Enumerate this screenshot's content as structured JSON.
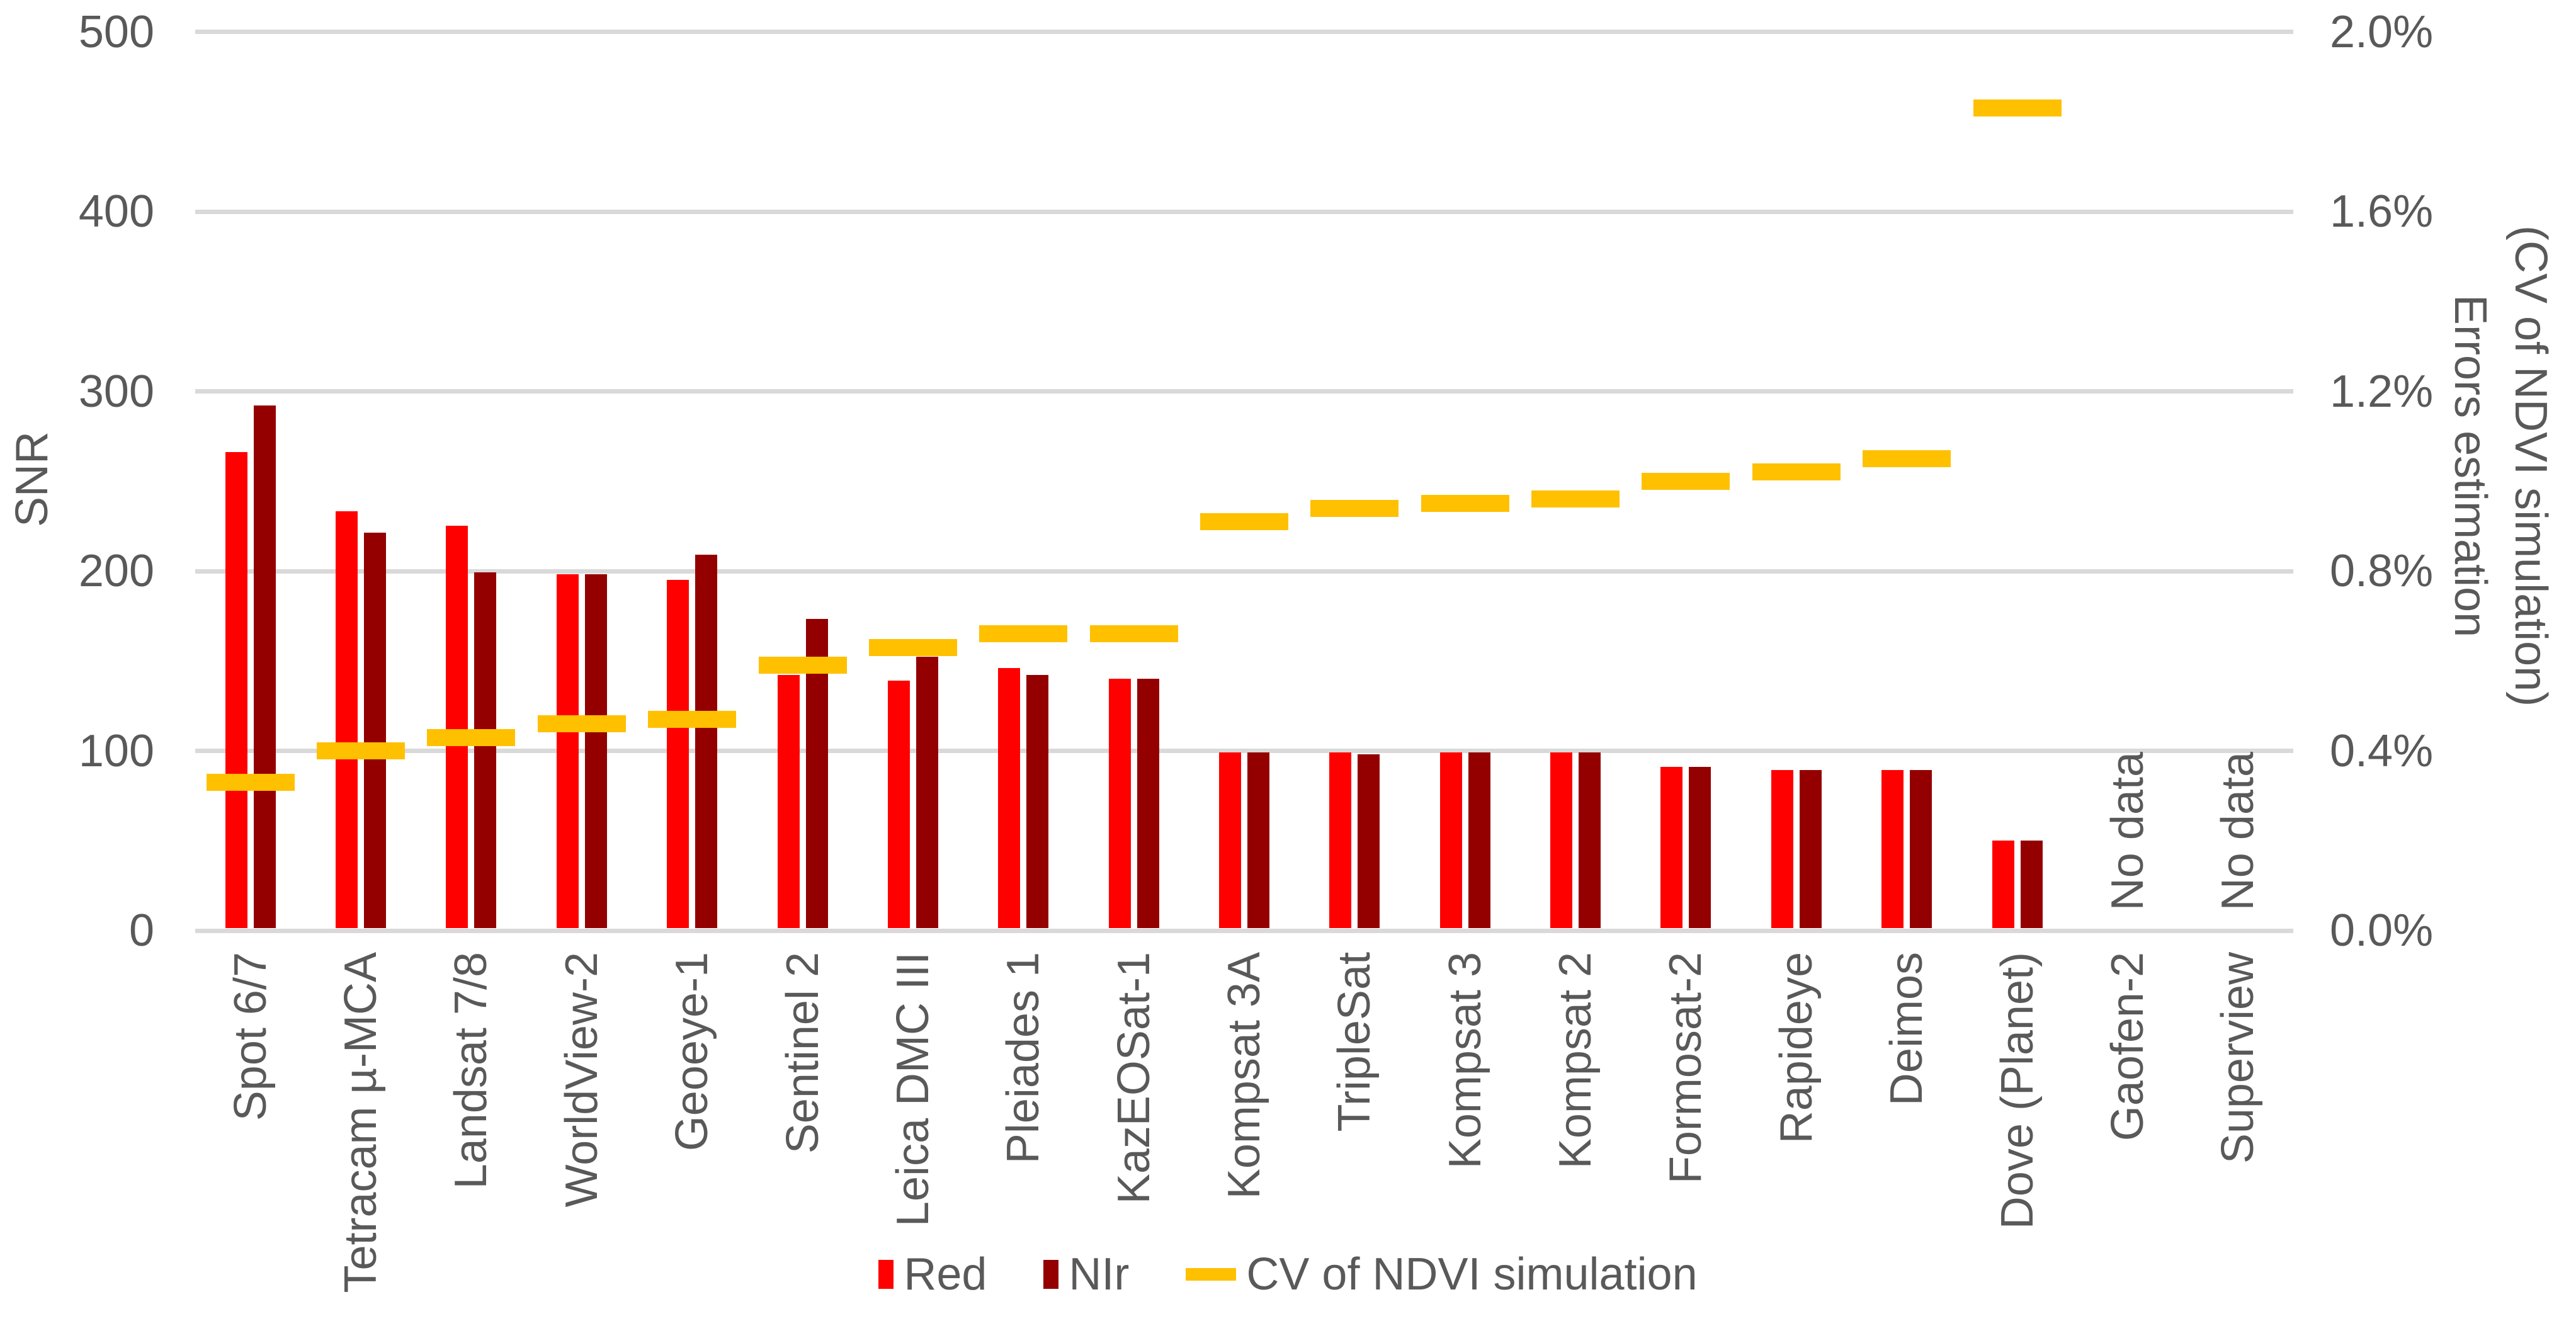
{
  "chart_data": {
    "type": "bar",
    "title": "",
    "categories": [
      "Spot 6/7",
      "Tetracam µ-MCA",
      "Landsat 7/8",
      "WorldView-2",
      "Geoeye-1",
      "Sentinel 2",
      "Leica DMC III",
      "Pleiades 1",
      "KazEOSat-1",
      "Kompsat 3A",
      "TripleSat",
      "Kompsat 3",
      "Kompsat 2",
      "Formosat-2",
      "Rapideye",
      "Deimos",
      "Dove (Planet)",
      "Gaofen-2",
      "Superview"
    ],
    "series": [
      {
        "name": "Red",
        "type": "bar",
        "color": "#ff0000",
        "values": [
          265,
          232,
          224,
          197,
          194,
          141,
          138,
          145,
          139,
          98,
          98,
          98,
          98,
          90,
          88,
          88,
          49,
          null,
          null
        ]
      },
      {
        "name": "NIr",
        "type": "bar",
        "color": "#940000",
        "values": [
          291,
          220,
          198,
          197,
          208,
          172,
          151,
          141,
          139,
          98,
          97,
          98,
          98,
          90,
          88,
          88,
          49,
          null,
          null
        ]
      },
      {
        "name": "CV of NDVI simulation",
        "type": "line",
        "color": "#ffc000",
        "axis": "right",
        "values_percent": [
          0.33,
          0.4,
          0.43,
          0.46,
          0.47,
          0.59,
          0.63,
          0.66,
          0.66,
          0.91,
          0.94,
          0.95,
          0.96,
          1.0,
          1.02,
          1.05,
          1.83,
          null,
          null
        ]
      }
    ],
    "left_axis": {
      "title": "SNR",
      "ticks": [
        "0",
        "100",
        "200",
        "300",
        "400",
        "500"
      ],
      "range": [
        0,
        500
      ]
    },
    "right_axis": {
      "title_line1": "Errors estimation",
      "title_line2": "(CV of NDVI simulation)",
      "ticks": [
        "0.0%",
        "0.4%",
        "0.8%",
        "1.2%",
        "1.6%",
        "2.0%"
      ],
      "range_percent": [
        0,
        2.0
      ]
    },
    "no_data_label": "No data",
    "no_data_categories": [
      "Gaofen-2",
      "Superview"
    ],
    "grid": true,
    "legend_position": "bottom",
    "gridline_color": "#d9d9d9",
    "text_color": "#595959"
  }
}
